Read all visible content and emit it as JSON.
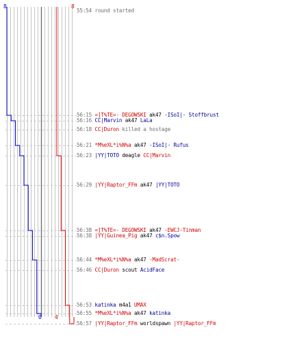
{
  "scoreboard": {
    "blue_start": "8",
    "red_start": "8",
    "blue_end": "0",
    "red_end": "4"
  },
  "colors": {
    "blue_team": "#0000cc",
    "red_team": "#dd0000",
    "text": "#000000",
    "time": "#707070",
    "grid": "#b4b4b4",
    "center_line": "#707070"
  },
  "chart_data": {
    "type": "line",
    "x_unit": "round time (mm:ss)",
    "series": [
      {
        "team": "blue",
        "color": "#0000cc",
        "points": [
          {
            "t": "55:54",
            "alive": 8
          },
          {
            "t": "56:15",
            "alive": 7
          },
          {
            "t": "56:16",
            "alive": 6
          },
          {
            "t": "56:21",
            "alive": 5
          },
          {
            "t": "56:23",
            "alive": 4
          },
          {
            "t": "56:29",
            "alive": 3
          },
          {
            "t": "56:38",
            "alive": 2
          },
          {
            "t": "56:44",
            "alive": 1
          },
          {
            "t": "56:55",
            "alive": 0
          }
        ]
      },
      {
        "team": "red",
        "color": "#dd0000",
        "points": [
          {
            "t": "55:54",
            "alive": 8
          },
          {
            "t": "56:23",
            "alive": 7
          },
          {
            "t": "56:38",
            "alive": 6
          },
          {
            "t": "56:53",
            "alive": 5
          },
          {
            "t": "56:57",
            "alive": 4
          }
        ]
      }
    ],
    "xlim": [
      0,
      8
    ]
  },
  "events": [
    {
      "time": "55:54",
      "parts": [
        {
          "text": "round started",
          "color": "gray"
        }
      ]
    },
    {
      "time": "56:15",
      "parts": [
        {
          "text": "=]T%TE=- DEGOWSKI",
          "color": "red"
        },
        {
          "text": " ak47 ",
          "color": "dark"
        },
        {
          "text": "-ISoI|- Stoffbrust",
          "color": "blue"
        }
      ]
    },
    {
      "time": "56:16",
      "parts": [
        {
          "text": "CC|Marvin",
          "color": "blue"
        },
        {
          "text": " ak47 ",
          "color": "dark"
        },
        {
          "text": "LaLa",
          "color": "blue"
        }
      ]
    },
    {
      "time": "56:18",
      "parts": [
        {
          "text": "CC|Duron",
          "color": "red"
        },
        {
          "text": " killed a hostage",
          "color": "gray"
        }
      ]
    },
    {
      "time": "56:21",
      "parts": [
        {
          "text": "*M%eXL*i%N%a",
          "color": "red"
        },
        {
          "text": " ak47 ",
          "color": "dark"
        },
        {
          "text": "-ISoI|- Rufus",
          "color": "blue"
        }
      ]
    },
    {
      "time": "56:23",
      "parts": [
        {
          "text": "|YY|TOTO",
          "color": "blue"
        },
        {
          "text": " deagle ",
          "color": "dark"
        },
        {
          "text": "CC|Marvin",
          "color": "red"
        }
      ]
    },
    {
      "time": "56:29",
      "parts": [
        {
          "text": "|YY|Raptor_FFm",
          "color": "red"
        },
        {
          "text": " ak47 ",
          "color": "dark"
        },
        {
          "text": "|YY|TOTO",
          "color": "blue"
        }
      ]
    },
    {
      "time": "56:38",
      "parts": [
        {
          "text": "=]T%TE=- DEGOWSKI",
          "color": "red"
        },
        {
          "text": " ak47 ",
          "color": "dark"
        },
        {
          "text": "-EWCJ-Tinman",
          "color": "red"
        }
      ]
    },
    {
      "time": "56:38",
      "parts": [
        {
          "text": "|YY|Guinea_Pig",
          "color": "red"
        },
        {
          "text": " ak47 ",
          "color": "dark"
        },
        {
          "text": "c$n.Spow",
          "color": "blue"
        }
      ]
    },
    {
      "time": "56:44",
      "parts": [
        {
          "text": "*M%eXL*i%N%a",
          "color": "red"
        },
        {
          "text": " ak47 ",
          "color": "dark"
        },
        {
          "text": "-MadScrat-",
          "color": "red"
        }
      ]
    },
    {
      "time": "56:46",
      "parts": [
        {
          "text": "CC|Duron",
          "color": "red"
        },
        {
          "text": " scout ",
          "color": "dark"
        },
        {
          "text": "AcidFace",
          "color": "blue"
        }
      ]
    },
    {
      "time": "56:53",
      "parts": [
        {
          "text": "katinka",
          "color": "blue"
        },
        {
          "text": " m4a1 ",
          "color": "dark"
        },
        {
          "text": "UMAX",
          "color": "red"
        }
      ]
    },
    {
      "time": "56:55",
      "parts": [
        {
          "text": "*M%eXL*i%N%a",
          "color": "red"
        },
        {
          "text": " ak47 ",
          "color": "dark"
        },
        {
          "text": "katinka",
          "color": "blue"
        }
      ]
    },
    {
      "time": "56:57",
      "parts": [
        {
          "text": "|YY|Raptor_FFm",
          "color": "red"
        },
        {
          "text": " worldspawn ",
          "color": "dark"
        },
        {
          "text": "|YY|Raptor_FFm",
          "color": "red"
        }
      ]
    }
  ]
}
